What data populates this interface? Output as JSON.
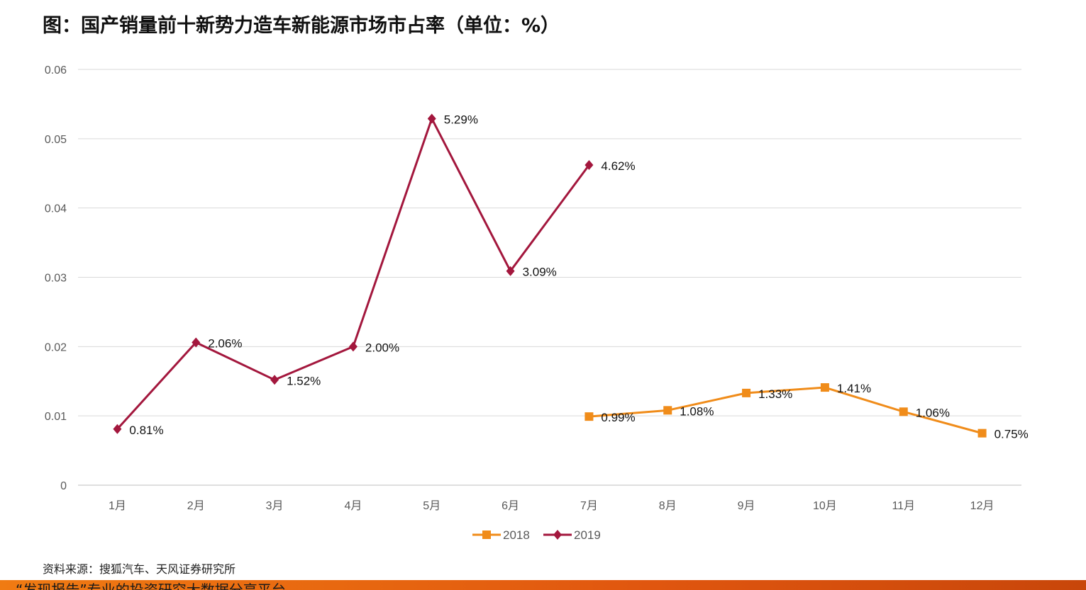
{
  "chart_data": {
    "type": "line",
    "title": "图：国产销量前十新势力造车新能源市场市占率（单位：%）",
    "xlabel": "",
    "ylabel": "",
    "categories": [
      "1月",
      "2月",
      "3月",
      "4月",
      "5月",
      "6月",
      "7月",
      "8月",
      "9月",
      "10月",
      "11月",
      "12月"
    ],
    "ylim": [
      0,
      0.06
    ],
    "yticks": [
      "0",
      "0.01",
      "0.02",
      "0.03",
      "0.04",
      "0.05",
      "0.06"
    ],
    "grid": true,
    "legend_position": "bottom",
    "series": [
      {
        "name": "2018",
        "color": "#f08c1a",
        "marker": "square",
        "values": [
          null,
          null,
          null,
          null,
          null,
          null,
          0.0099,
          0.0108,
          0.0133,
          0.0141,
          0.0106,
          0.0075
        ],
        "labels": [
          null,
          null,
          null,
          null,
          null,
          null,
          "0.99%",
          "1.08%",
          "1.33%",
          "1.41%",
          "1.06%",
          "0.75%"
        ]
      },
      {
        "name": "2019",
        "color": "#a3173d",
        "marker": "diamond",
        "values": [
          0.0081,
          0.0206,
          0.0152,
          0.02,
          0.0529,
          0.0309,
          0.0462,
          null,
          null,
          null,
          null,
          null
        ],
        "labels": [
          "0.81%",
          "2.06%",
          "1.52%",
          "2.00%",
          "5.29%",
          "3.09%",
          "4.62%",
          null,
          null,
          null,
          null,
          null
        ]
      }
    ]
  },
  "source_note": "资料来源：搜狐汽车、天风证券研究所",
  "footer": {
    "text": "“发现报告”专业的投资研究大数据分享平台",
    "color": "#e8641a"
  }
}
